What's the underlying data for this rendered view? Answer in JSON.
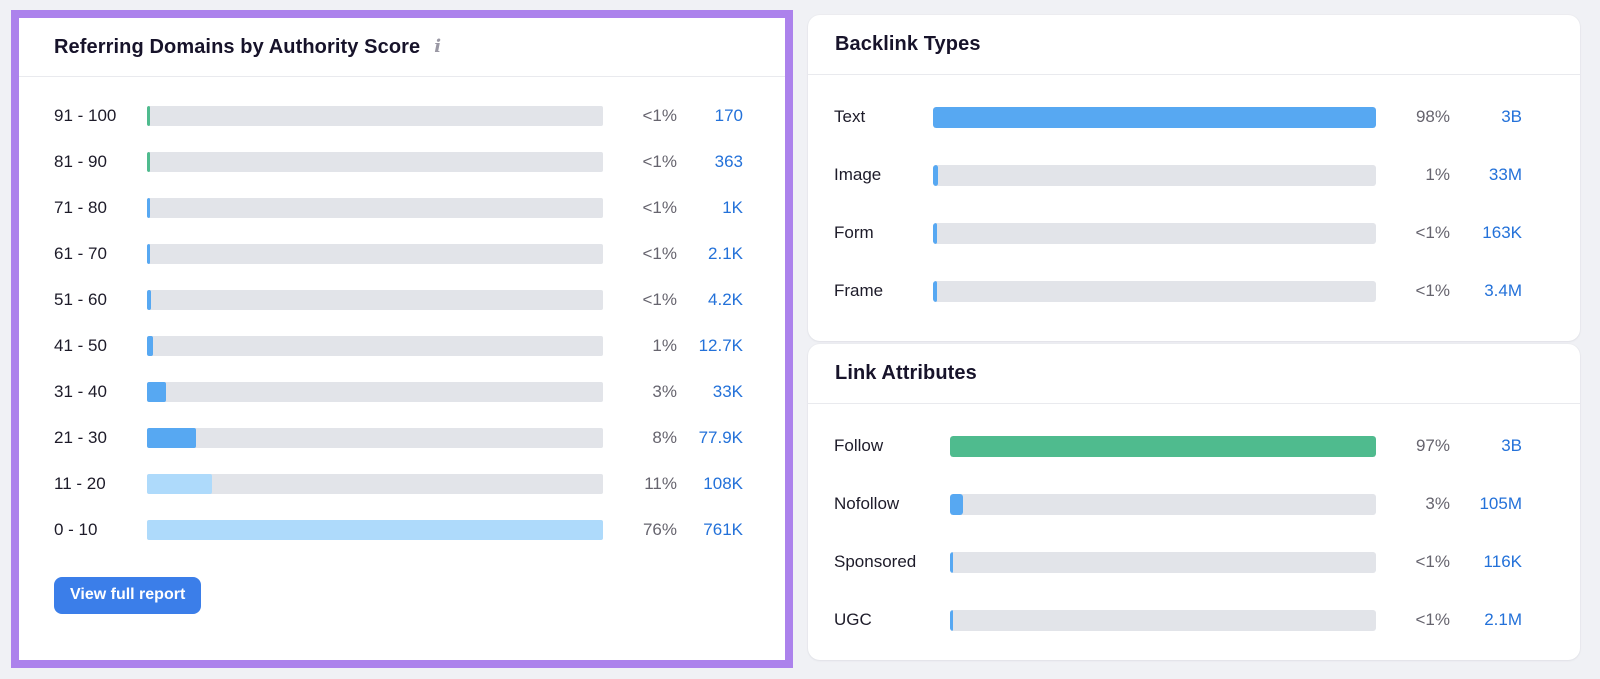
{
  "colors": {
    "green": "#4FBB8E",
    "blue": "#57A8F2",
    "lightblue": "#AEDAFB",
    "track": "#E2E4E9",
    "link": "#2371D9",
    "button": "#3B7EE9",
    "highlight": "#AC82EC"
  },
  "referring_domains": {
    "title": "Referring Domains by Authority Score",
    "info_icon": "i",
    "button_label": "View full report",
    "rows": [
      {
        "label": "91 - 100",
        "percent": "<1%",
        "value": "170",
        "fill": 0.7,
        "color": "green"
      },
      {
        "label": "81 - 90",
        "percent": "<1%",
        "value": "363",
        "fill": 0.7,
        "color": "green"
      },
      {
        "label": "71 - 80",
        "percent": "<1%",
        "value": "1K",
        "fill": 0.7,
        "color": "blue"
      },
      {
        "label": "61 - 70",
        "percent": "<1%",
        "value": "2.1K",
        "fill": 0.7,
        "color": "blue"
      },
      {
        "label": "51 - 60",
        "percent": "<1%",
        "value": "4.2K",
        "fill": 0.8,
        "color": "blue"
      },
      {
        "label": "41 - 50",
        "percent": "1%",
        "value": "12.7K",
        "fill": 1.3,
        "color": "blue"
      },
      {
        "label": "31 - 40",
        "percent": "3%",
        "value": "33K",
        "fill": 4.1,
        "color": "blue"
      },
      {
        "label": "21 - 30",
        "percent": "8%",
        "value": "77.9K",
        "fill": 10.8,
        "color": "blue"
      },
      {
        "label": "11 - 20",
        "percent": "11%",
        "value": "108K",
        "fill": 14.3,
        "color": "lightblue"
      },
      {
        "label": "0 - 10",
        "percent": "76%",
        "value": "761K",
        "fill": 100,
        "color": "lightblue"
      }
    ]
  },
  "backlink_types": {
    "title": "Backlink Types",
    "rows": [
      {
        "label": "Text",
        "percent": "98%",
        "value": "3B",
        "fill": 100,
        "color": "blue"
      },
      {
        "label": "Image",
        "percent": "1%",
        "value": "33M",
        "fill": 1.2,
        "color": "blue"
      },
      {
        "label": "Form",
        "percent": "<1%",
        "value": "163K",
        "fill": 0.8,
        "color": "blue"
      },
      {
        "label": "Frame",
        "percent": "<1%",
        "value": "3.4M",
        "fill": 0.8,
        "color": "blue"
      }
    ]
  },
  "link_attributes": {
    "title": "Link Attributes",
    "rows": [
      {
        "label": "Follow",
        "percent": "97%",
        "value": "3B",
        "fill": 100,
        "color": "green"
      },
      {
        "label": "Nofollow",
        "percent": "3%",
        "value": "105M",
        "fill": 3.1,
        "color": "blue"
      },
      {
        "label": "Sponsored",
        "percent": "<1%",
        "value": "116K",
        "fill": 0.8,
        "color": "blue"
      },
      {
        "label": "UGC",
        "percent": "<1%",
        "value": "2.1M",
        "fill": 0.8,
        "color": "blue"
      }
    ]
  }
}
